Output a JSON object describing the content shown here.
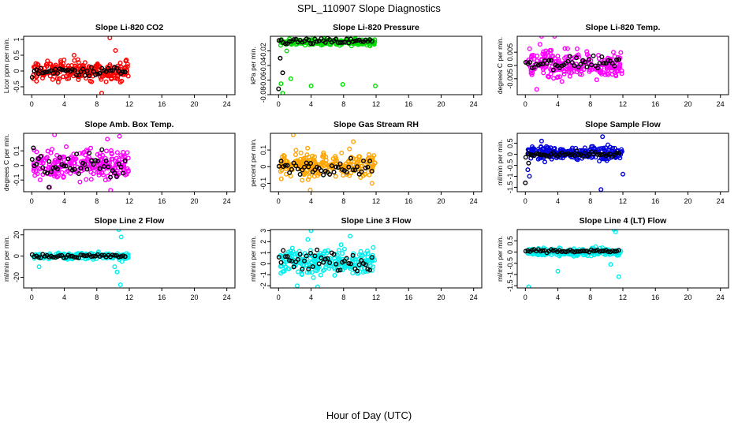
{
  "figure": {
    "title": "SPL_110907  Slope Diagnostics",
    "xlabel": "Hour of Day (UTC)"
  },
  "chart_data": [
    {
      "type": "scatter",
      "title": "Slope Li-820 CO2",
      "ylabel": "Licor ppm per min.",
      "xlim": [
        -1,
        25
      ],
      "xticks": [
        0,
        4,
        8,
        12,
        16,
        20,
        24
      ],
      "ylim": [
        -0.75,
        1.1
      ],
      "yticks": [
        -0.5,
        0,
        0.5,
        1
      ],
      "ytick_labels": [
        "-0.5",
        "0",
        "0.5",
        "1"
      ],
      "color": "#ff0000",
      "spread": 0.22,
      "center": 0,
      "outliers": [
        [
          9.6,
          1.05
        ],
        [
          8.6,
          -0.7
        ],
        [
          10.3,
          0.65
        ],
        [
          5.2,
          0.5
        ]
      ],
      "black_center": 0,
      "black_spread": 0.1
    },
    {
      "type": "scatter",
      "title": "Slope Li-820 Pressure",
      "ylabel": "kPa per min.",
      "xlim": [
        -1,
        25
      ],
      "xticks": [
        0,
        4,
        8,
        12,
        16,
        20,
        24
      ],
      "ylim": [
        -0.08,
        0.0
      ],
      "yticks": [
        -0.08,
        -0.06,
        -0.04,
        -0.02
      ],
      "ytick_labels": [
        "-0.08",
        "-0.06",
        "-0.04",
        "-0.02"
      ],
      "color": "#00dd00",
      "spread": 0.003,
      "center": -0.008,
      "outliers": [
        [
          0.3,
          -0.065
        ],
        [
          1.5,
          -0.058
        ],
        [
          4.0,
          -0.068
        ],
        [
          7.9,
          -0.066
        ],
        [
          11.9,
          -0.068
        ],
        [
          0.5,
          -0.078
        ],
        [
          1.0,
          -0.02
        ]
      ],
      "black_center": -0.007,
      "black_spread": 0.003,
      "black_outliers": [
        [
          0.0,
          -0.072
        ],
        [
          0.2,
          -0.03
        ],
        [
          0.5,
          -0.05
        ]
      ]
    },
    {
      "type": "scatter",
      "title": "Slope Li-820 Temp.",
      "ylabel": "degrees C per min.",
      "xlim": [
        -1,
        25
      ],
      "xticks": [
        0,
        4,
        8,
        12,
        16,
        20,
        24
      ],
      "ylim": [
        -0.011,
        0.011
      ],
      "yticks": [
        -0.005,
        0,
        0.005
      ],
      "ytick_labels": [
        "-0.005",
        "0",
        "0.005"
      ],
      "color": "#ff00ff",
      "spread": 0.0035,
      "center": 0.0003,
      "outliers": [
        [
          2.0,
          0.011
        ],
        [
          3.6,
          0.011
        ],
        [
          1.4,
          -0.009
        ],
        [
          4.5,
          -0.006
        ],
        [
          1.8,
          0.008
        ]
      ],
      "black_center": 0.001,
      "black_spread": 0.0015
    },
    {
      "type": "scatter",
      "title": "Slope Amb. Box Temp.",
      "ylabel": "degrees C per min.",
      "xlim": [
        -1,
        25
      ],
      "xticks": [
        0,
        4,
        8,
        12,
        16,
        20,
        24
      ],
      "ylim": [
        -0.18,
        0.22
      ],
      "yticks": [
        -0.1,
        0,
        0.1
      ],
      "ytick_labels": [
        "-0.1",
        "0",
        "0.1"
      ],
      "color": "#ff00ff",
      "spread": 0.075,
      "center": 0.01,
      "outliers": [
        [
          2.8,
          0.21
        ],
        [
          9.3,
          0.18
        ],
        [
          10.8,
          0.2
        ],
        [
          9.7,
          -0.17
        ],
        [
          2.2,
          -0.15
        ]
      ],
      "black_center": 0.0,
      "black_spread": 0.06,
      "black_outliers": [
        [
          0.2,
          0.12
        ],
        [
          2.1,
          -0.15
        ]
      ]
    },
    {
      "type": "scatter",
      "title": "Slope Gas Stream RH",
      "ylabel": "percent per min.",
      "xlim": [
        -1,
        25
      ],
      "xticks": [
        0,
        4,
        8,
        12,
        16,
        20,
        24
      ],
      "ylim": [
        -0.15,
        0.2
      ],
      "yticks": [
        -0.1,
        0,
        0.1
      ],
      "ytick_labels": [
        "-0.1",
        "0",
        "0.1"
      ],
      "color": "#ffa500",
      "spread": 0.05,
      "center": 0.01,
      "outliers": [
        [
          1.8,
          0.19
        ],
        [
          3.9,
          -0.14
        ],
        [
          9.2,
          0.15
        ],
        [
          11.5,
          -0.1
        ]
      ],
      "black_center": 0.0,
      "black_spread": 0.03
    },
    {
      "type": "scatter",
      "title": "Slope Sample Flow",
      "ylabel": "ml/min per min.",
      "xlim": [
        -1,
        25
      ],
      "xticks": [
        0,
        4,
        8,
        12,
        16,
        20,
        24
      ],
      "ylim": [
        -1.7,
        0.95
      ],
      "yticks": [
        -1.5,
        -1,
        -0.5,
        0,
        0.5
      ],
      "ytick_labels": [
        "-1.5",
        "-1",
        "-0.5",
        "0",
        "0.5"
      ],
      "color": "#0000dd",
      "spread": 0.22,
      "center": 0.05,
      "outliers": [
        [
          9.3,
          -1.6
        ],
        [
          0.5,
          -1.0
        ],
        [
          0.3,
          -0.7
        ],
        [
          9.5,
          0.8
        ],
        [
          2.0,
          0.6
        ],
        [
          12.0,
          -0.9
        ]
      ],
      "black_center": 0.0,
      "black_spread": 0.08,
      "black_outliers": [
        [
          0.0,
          -1.3
        ],
        [
          0.4,
          -0.4
        ]
      ]
    },
    {
      "type": "scatter",
      "title": "Slope Line 2 Flow",
      "ylabel": "ml/min per min.",
      "xlim": [
        -1,
        25
      ],
      "xticks": [
        0,
        4,
        8,
        12,
        16,
        20,
        24
      ],
      "ylim": [
        -30,
        25
      ],
      "yticks": [
        -20,
        0,
        20
      ],
      "ytick_labels": [
        "-20",
        "0",
        "20"
      ],
      "color": "#00eeee",
      "spread": 2.0,
      "center": 0,
      "outliers": [
        [
          10.7,
          25
        ],
        [
          10.9,
          -27
        ],
        [
          11.0,
          18
        ],
        [
          10.5,
          -15
        ],
        [
          11.1,
          -5
        ],
        [
          10.2,
          -10
        ],
        [
          0.9,
          -10
        ]
      ],
      "black_center": 0,
      "black_spread": 1.2
    },
    {
      "type": "scatter",
      "title": "Slope Line 3 Flow",
      "ylabel": "ml/min per min.",
      "xlim": [
        -1,
        25
      ],
      "xticks": [
        0,
        4,
        8,
        12,
        16,
        20,
        24
      ],
      "ylim": [
        -2.2,
        3.1
      ],
      "yticks": [
        -2,
        -1,
        0,
        1,
        2,
        3
      ],
      "ytick_labels": [
        "-2",
        "-1",
        "0",
        "1",
        "2",
        "3"
      ],
      "color": "#00eeee",
      "spread": 0.8,
      "center": 0.2,
      "outliers": [
        [
          4.0,
          3.0
        ],
        [
          3.6,
          2.2
        ],
        [
          4.8,
          -2.1
        ],
        [
          2.3,
          -2.0
        ],
        [
          8.8,
          2.5
        ]
      ],
      "black_center": 0.2,
      "black_spread": 0.7
    },
    {
      "type": "scatter",
      "title": "Slope Line 4 (LT) Flow",
      "ylabel": "ml/min per min.",
      "xlim": [
        -1,
        25
      ],
      "xticks": [
        0,
        4,
        8,
        12,
        16,
        20,
        24
      ],
      "ylim": [
        -1.6,
        1.0
      ],
      "yticks": [
        -1.5,
        -1,
        -0.5,
        0,
        0.5
      ],
      "ytick_labels": [
        "-1.5",
        "-1",
        "-0.5",
        "0",
        "0.5"
      ],
      "color": "#00eeee",
      "spread": 0.12,
      "center": 0.0,
      "outliers": [
        [
          0.4,
          -1.55
        ],
        [
          10.9,
          1.0
        ],
        [
          11.1,
          0.9
        ],
        [
          4.0,
          -0.85
        ],
        [
          10.5,
          -0.55
        ],
        [
          11.5,
          -1.1
        ]
      ],
      "black_center": 0.05,
      "black_spread": 0.05
    }
  ]
}
